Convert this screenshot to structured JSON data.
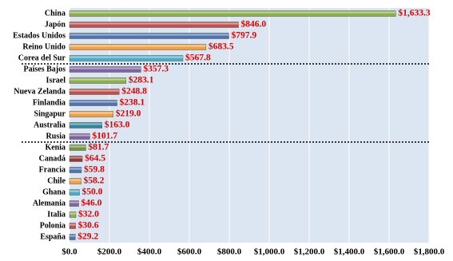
{
  "chart_data": {
    "type": "hbar",
    "categories": [
      "China",
      "Japón",
      "Estados Unidos",
      "Reino Unido",
      "Corea del Sur",
      "Países Bajos",
      "Israel",
      "Nueva Zelanda",
      "Finlandia",
      "Singapur",
      "Australia",
      "Rusia",
      "Kenia",
      "Canadá",
      "Francia",
      "Chile",
      "Ghana",
      "Alemania",
      "Italia",
      "Polonia",
      "España"
    ],
    "values": [
      1633.3,
      846.0,
      797.9,
      683.5,
      567.8,
      357.3,
      283.1,
      248.8,
      238.1,
      219.0,
      163.0,
      101.7,
      81.7,
      64.5,
      59.8,
      58.2,
      50.0,
      46.0,
      32.0,
      30.6,
      29.2
    ],
    "value_labels": [
      "$1,633.3",
      "$846.0",
      "$797.9",
      "$683.5",
      "$567.8",
      "$357.3",
      "$283.1",
      "$248.8",
      "$238.1",
      "$219.0",
      "$163.0",
      "$101.7",
      "$81.7",
      "$64.5",
      "$59.8",
      "$58.2",
      "$50.0",
      "$46.0",
      "$32.0",
      "$30.6",
      "$29.2"
    ],
    "colors": [
      "#8db04a",
      "#c0504d",
      "#4f72b0",
      "#f0a040",
      "#4bacc6",
      "#8064a2",
      "#8db04a",
      "#c0504d",
      "#4f72b0",
      "#f0a040",
      "#31859c",
      "#8064a2",
      "#77933c",
      "#953735",
      "#4f72b0",
      "#f0a040",
      "#4bacc6",
      "#8064a2",
      "#8db04a",
      "#c0504d",
      "#4f72b0"
    ],
    "xlim": [
      0,
      1800
    ],
    "xticks": [
      {
        "value": 0,
        "label": "$0.0"
      },
      {
        "value": 200,
        "label": "$200.0"
      },
      {
        "value": 400,
        "label": "$400.0"
      },
      {
        "value": 600,
        "label": "$600.0"
      },
      {
        "value": 800,
        "label": "$800.0"
      },
      {
        "value": 1000,
        "label": "$1,000.0"
      },
      {
        "value": 1200,
        "label": "$1,200.0"
      },
      {
        "value": 1400,
        "label": "$1,400.0"
      },
      {
        "value": 1600,
        "label": "$1,600.0"
      },
      {
        "value": 1800,
        "label": "$1,800.0"
      }
    ],
    "grid": true
  }
}
